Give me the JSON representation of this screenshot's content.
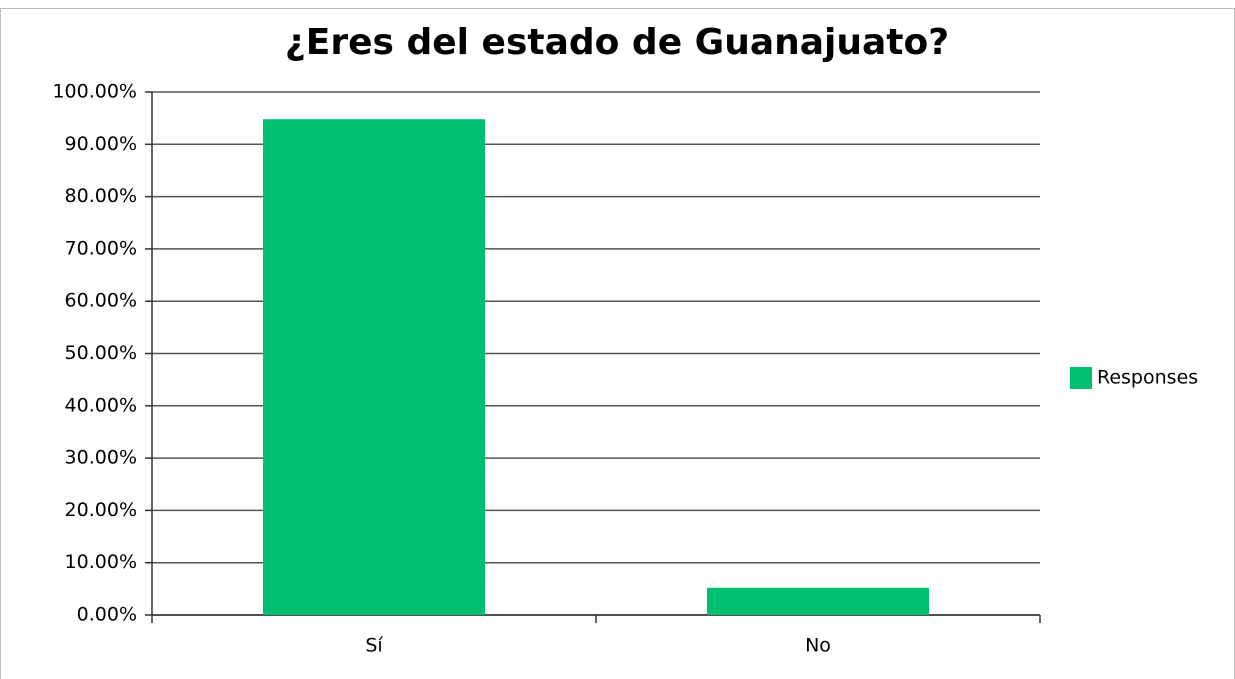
{
  "chart_data": {
    "type": "bar",
    "title": "¿Eres del estado de Guanajuato?",
    "categories": [
      "Sí",
      "No"
    ],
    "series": [
      {
        "name": "Responses",
        "color": "#00bf6f",
        "values": [
          94.8,
          5.2
        ]
      }
    ],
    "ylim": [
      0,
      100
    ],
    "yticks": [
      {
        "value": 0,
        "label": "0.00%"
      },
      {
        "value": 10,
        "label": "10.00%"
      },
      {
        "value": 20,
        "label": "20.00%"
      },
      {
        "value": 30,
        "label": "30.00%"
      },
      {
        "value": 40,
        "label": "40.00%"
      },
      {
        "value": 50,
        "label": "50.00%"
      },
      {
        "value": 60,
        "label": "60.00%"
      },
      {
        "value": 70,
        "label": "70.00%"
      },
      {
        "value": 80,
        "label": "80.00%"
      },
      {
        "value": 90,
        "label": "90.00%"
      },
      {
        "value": 100,
        "label": "100.00%"
      }
    ],
    "grid": true,
    "legend": "right"
  }
}
